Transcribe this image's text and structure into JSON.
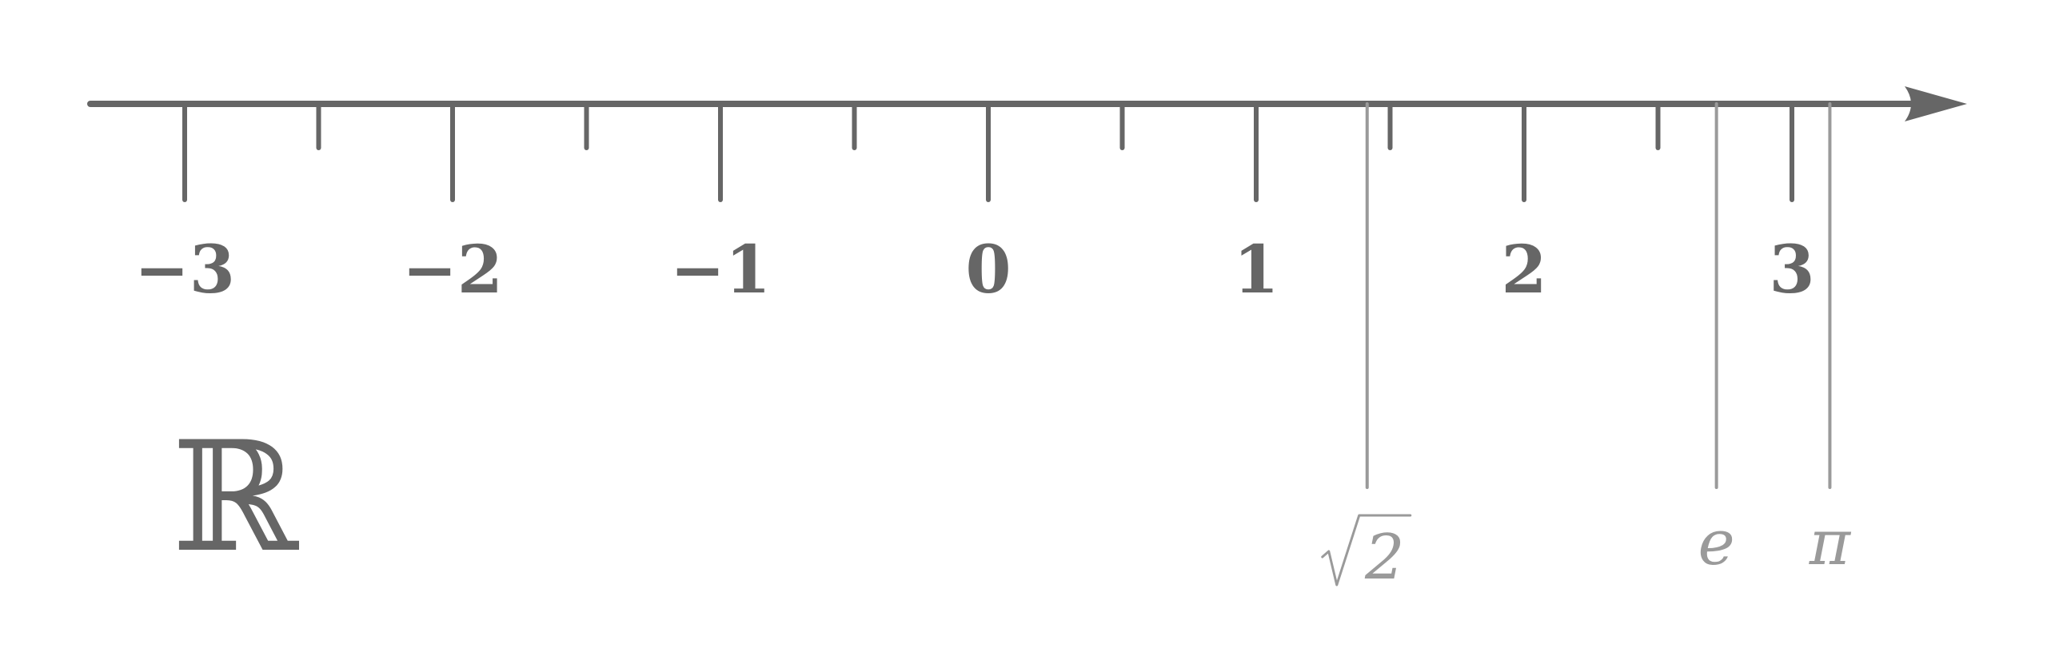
{
  "colors": {
    "axis": "#666666",
    "constants": "#9a9a9a",
    "background": "#ffffff"
  },
  "axis": {
    "direction": "right",
    "integer_ticks": [
      -3,
      -2,
      -1,
      0,
      1,
      2,
      3
    ],
    "integer_labels": [
      "−3",
      "−2",
      "−1",
      "0",
      "1",
      "2",
      "3"
    ],
    "half_ticks": [
      -2.5,
      -1.5,
      -0.5,
      0.5,
      1.5,
      2.5
    ]
  },
  "constants": [
    {
      "name": "sqrt2",
      "value": 1.41421,
      "label": "2",
      "radical": true
    },
    {
      "name": "e",
      "value": 2.71828,
      "label": "e",
      "radical": false
    },
    {
      "name": "pi",
      "value": 3.14159,
      "label": "π",
      "radical": false
    }
  ],
  "set_symbol": "ℝ"
}
